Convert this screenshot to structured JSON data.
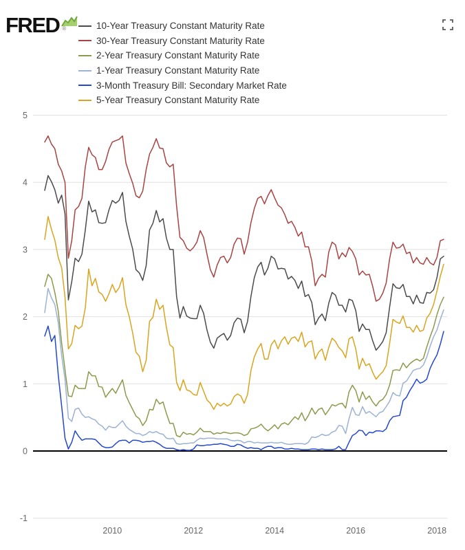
{
  "logo": {
    "text": "FRED",
    "registered": "®"
  },
  "chart_data": {
    "type": "line",
    "freq": "monthly",
    "start": "2008-05",
    "end": "2018-03",
    "ylim": [
      -1,
      5
    ],
    "y_ticks": [
      5,
      4,
      3,
      2,
      1,
      0,
      -1
    ],
    "x_ticks": [
      2010,
      2012,
      2014,
      2016,
      2018
    ],
    "grid": true,
    "grid_color": "#e0e0e0",
    "zero_line_color": "#000000",
    "axis_label_color": "#666666",
    "legend_position": "top-left",
    "series": [
      {
        "id": "10-year",
        "name": "10-Year Treasury Constant Maturity Rate",
        "color": "#4a4a4a",
        "values": [
          3.88,
          4.1,
          4.01,
          3.89,
          3.69,
          3.81,
          3.53,
          2.25,
          2.52,
          2.87,
          2.82,
          2.93,
          3.29,
          3.72,
          3.56,
          3.59,
          3.4,
          3.39,
          3.4,
          3.59,
          3.73,
          3.69,
          3.73,
          3.85,
          3.42,
          3.2,
          3.01,
          2.7,
          2.65,
          2.54,
          2.76,
          3.29,
          3.39,
          3.58,
          3.41,
          3.46,
          3.17,
          3.0,
          3.0,
          2.3,
          1.98,
          2.15,
          2.01,
          1.98,
          1.97,
          1.97,
          2.17,
          2.05,
          1.8,
          1.62,
          1.53,
          1.68,
          1.72,
          1.75,
          1.65,
          1.72,
          1.91,
          1.98,
          1.96,
          1.76,
          1.93,
          2.3,
          2.58,
          2.74,
          2.81,
          2.62,
          2.72,
          2.9,
          2.86,
          2.71,
          2.72,
          2.71,
          2.56,
          2.6,
          2.54,
          2.42,
          2.53,
          2.3,
          2.33,
          2.21,
          1.88,
          1.98,
          2.04,
          1.94,
          2.2,
          2.36,
          2.32,
          2.17,
          2.17,
          2.07,
          2.26,
          2.24,
          2.09,
          1.78,
          1.89,
          1.81,
          1.81,
          1.64,
          1.5,
          1.56,
          1.63,
          1.76,
          2.14,
          2.49,
          2.43,
          2.42,
          2.48,
          2.3,
          2.3,
          2.19,
          2.32,
          2.21,
          2.2,
          2.36,
          2.35,
          2.4,
          2.58,
          2.86,
          2.9
        ]
      },
      {
        "id": "30-year",
        "name": "30-Year Treasury Constant Maturity Rate",
        "color": "#a84342",
        "values": [
          4.6,
          4.69,
          4.57,
          4.5,
          4.27,
          4.17,
          4.0,
          2.87,
          3.13,
          3.59,
          3.64,
          3.76,
          4.23,
          4.52,
          4.41,
          4.37,
          4.19,
          4.19,
          4.31,
          4.49,
          4.6,
          4.62,
          4.64,
          4.69,
          4.29,
          4.13,
          3.99,
          3.8,
          3.77,
          3.87,
          4.19,
          4.42,
          4.52,
          4.65,
          4.51,
          4.5,
          4.29,
          4.23,
          4.27,
          3.65,
          3.18,
          3.13,
          3.02,
          2.98,
          3.03,
          3.11,
          3.28,
          3.18,
          2.93,
          2.7,
          2.59,
          2.77,
          2.88,
          2.9,
          2.8,
          2.88,
          3.08,
          3.17,
          3.16,
          2.93,
          3.11,
          3.4,
          3.61,
          3.76,
          3.79,
          3.68,
          3.8,
          3.89,
          3.77,
          3.66,
          3.62,
          3.52,
          3.39,
          3.42,
          3.33,
          3.2,
          3.26,
          3.04,
          3.04,
          2.83,
          2.46,
          2.57,
          2.63,
          2.59,
          2.96,
          3.11,
          3.07,
          2.86,
          2.95,
          2.89,
          3.03,
          2.97,
          2.86,
          2.62,
          2.68,
          2.62,
          2.63,
          2.45,
          2.23,
          2.26,
          2.35,
          2.5,
          2.86,
          3.11,
          3.02,
          3.03,
          3.08,
          2.94,
          2.96,
          2.8,
          2.88,
          2.8,
          2.78,
          2.88,
          2.8,
          2.77,
          2.88,
          3.13,
          3.15
        ]
      },
      {
        "id": "2-year",
        "name": "2-Year Treasury Constant Maturity Rate",
        "color": "#8a9a4b",
        "values": [
          2.45,
          2.63,
          2.57,
          2.36,
          2.08,
          1.61,
          1.21,
          0.82,
          0.81,
          0.98,
          0.93,
          0.93,
          0.93,
          1.18,
          1.12,
          1.12,
          0.96,
          0.95,
          0.8,
          0.87,
          0.93,
          0.86,
          0.96,
          1.06,
          0.83,
          0.72,
          0.62,
          0.52,
          0.48,
          0.38,
          0.45,
          0.62,
          0.61,
          0.77,
          0.7,
          0.73,
          0.56,
          0.41,
          0.41,
          0.23,
          0.21,
          0.28,
          0.25,
          0.26,
          0.24,
          0.28,
          0.34,
          0.29,
          0.29,
          0.29,
          0.25,
          0.27,
          0.26,
          0.28,
          0.27,
          0.26,
          0.27,
          0.27,
          0.26,
          0.23,
          0.25,
          0.33,
          0.34,
          0.36,
          0.4,
          0.34,
          0.3,
          0.34,
          0.39,
          0.33,
          0.4,
          0.42,
          0.39,
          0.45,
          0.51,
          0.47,
          0.57,
          0.45,
          0.53,
          0.64,
          0.55,
          0.62,
          0.64,
          0.54,
          0.61,
          0.69,
          0.67,
          0.7,
          0.71,
          0.64,
          0.88,
          0.98,
          0.9,
          0.73,
          0.88,
          0.77,
          0.82,
          0.73,
          0.67,
          0.74,
          0.77,
          0.84,
          0.98,
          1.2,
          1.21,
          1.2,
          1.31,
          1.24,
          1.3,
          1.34,
          1.37,
          1.34,
          1.38,
          1.55,
          1.7,
          1.84,
          2.03,
          2.18,
          2.29
        ]
      },
      {
        "id": "1-year",
        "name": "1-Year Treasury Constant Maturity Rate",
        "color": "#9bb2d4",
        "values": [
          2.06,
          2.42,
          2.28,
          2.18,
          1.91,
          1.42,
          1.07,
          0.49,
          0.44,
          0.62,
          0.64,
          0.55,
          0.5,
          0.51,
          0.48,
          0.46,
          0.4,
          0.37,
          0.31,
          0.37,
          0.35,
          0.35,
          0.4,
          0.45,
          0.37,
          0.32,
          0.29,
          0.26,
          0.26,
          0.23,
          0.25,
          0.29,
          0.27,
          0.29,
          0.26,
          0.25,
          0.19,
          0.18,
          0.19,
          0.11,
          0.1,
          0.11,
          0.11,
          0.12,
          0.12,
          0.16,
          0.19,
          0.18,
          0.19,
          0.19,
          0.19,
          0.18,
          0.18,
          0.18,
          0.18,
          0.16,
          0.15,
          0.16,
          0.15,
          0.12,
          0.14,
          0.14,
          0.12,
          0.13,
          0.12,
          0.12,
          0.12,
          0.13,
          0.12,
          0.12,
          0.13,
          0.11,
          0.1,
          0.1,
          0.11,
          0.11,
          0.11,
          0.1,
          0.13,
          0.21,
          0.2,
          0.22,
          0.25,
          0.23,
          0.24,
          0.28,
          0.3,
          0.38,
          0.37,
          0.26,
          0.48,
          0.65,
          0.54,
          0.53,
          0.66,
          0.56,
          0.59,
          0.55,
          0.51,
          0.57,
          0.59,
          0.66,
          0.74,
          0.87,
          0.83,
          0.82,
          1.01,
          1.04,
          1.12,
          1.2,
          1.22,
          1.23,
          1.28,
          1.4,
          1.56,
          1.7,
          1.8,
          1.96,
          2.1
        ]
      },
      {
        "id": "3-month",
        "name": "3-Month Treasury Bill: Secondary Market Rate",
        "color": "#2247cf",
        "values": [
          1.71,
          1.86,
          1.63,
          1.72,
          1.13,
          0.67,
          0.19,
          0.03,
          0.13,
          0.3,
          0.22,
          0.16,
          0.18,
          0.18,
          0.18,
          0.17,
          0.12,
          0.07,
          0.05,
          0.05,
          0.06,
          0.11,
          0.15,
          0.16,
          0.16,
          0.12,
          0.16,
          0.16,
          0.15,
          0.13,
          0.14,
          0.14,
          0.15,
          0.13,
          0.1,
          0.06,
          0.04,
          0.04,
          0.04,
          0.02,
          0.01,
          0.02,
          0.01,
          0.01,
          0.03,
          0.09,
          0.08,
          0.08,
          0.09,
          0.09,
          0.1,
          0.1,
          0.11,
          0.1,
          0.09,
          0.07,
          0.07,
          0.1,
          0.09,
          0.06,
          0.04,
          0.05,
          0.04,
          0.04,
          0.02,
          0.05,
          0.07,
          0.07,
          0.04,
          0.05,
          0.05,
          0.03,
          0.03,
          0.04,
          0.03,
          0.03,
          0.02,
          0.02,
          0.02,
          0.03,
          0.03,
          0.02,
          0.03,
          0.02,
          0.02,
          0.02,
          0.03,
          0.07,
          0.02,
          0.02,
          0.13,
          0.23,
          0.26,
          0.31,
          0.3,
          0.23,
          0.28,
          0.27,
          0.3,
          0.3,
          0.29,
          0.33,
          0.45,
          0.51,
          0.52,
          0.53,
          0.75,
          0.8,
          0.9,
          0.98,
          1.07,
          1.01,
          1.03,
          1.07,
          1.23,
          1.34,
          1.43,
          1.59,
          1.78
        ]
      },
      {
        "id": "5-year",
        "name": "5-Year Treasury Constant Maturity Rate",
        "color": "#d9a41e",
        "values": [
          3.15,
          3.49,
          3.3,
          3.14,
          2.88,
          2.73,
          2.29,
          1.52,
          1.6,
          1.87,
          1.82,
          1.86,
          2.13,
          2.71,
          2.46,
          2.57,
          2.37,
          2.33,
          2.23,
          2.34,
          2.48,
          2.36,
          2.43,
          2.58,
          2.18,
          2.0,
          1.76,
          1.47,
          1.41,
          1.18,
          1.35,
          1.93,
          1.99,
          2.26,
          2.11,
          2.17,
          1.84,
          1.58,
          1.54,
          1.02,
          0.9,
          1.06,
          0.91,
          0.89,
          0.84,
          0.83,
          1.02,
          0.89,
          0.76,
          0.71,
          0.62,
          0.71,
          0.67,
          0.71,
          0.67,
          0.7,
          0.81,
          0.85,
          0.82,
          0.71,
          0.84,
          1.2,
          1.4,
          1.52,
          1.6,
          1.37,
          1.37,
          1.58,
          1.65,
          1.52,
          1.64,
          1.7,
          1.59,
          1.68,
          1.7,
          1.63,
          1.77,
          1.55,
          1.62,
          1.64,
          1.37,
          1.47,
          1.52,
          1.35,
          1.54,
          1.68,
          1.63,
          1.54,
          1.49,
          1.39,
          1.67,
          1.7,
          1.52,
          1.22,
          1.38,
          1.27,
          1.3,
          1.17,
          1.07,
          1.13,
          1.18,
          1.27,
          1.6,
          1.96,
          1.92,
          1.9,
          2.01,
          1.84,
          1.84,
          1.77,
          1.87,
          1.78,
          1.8,
          1.98,
          2.05,
          2.18,
          2.38,
          2.6,
          2.78
        ]
      }
    ]
  }
}
